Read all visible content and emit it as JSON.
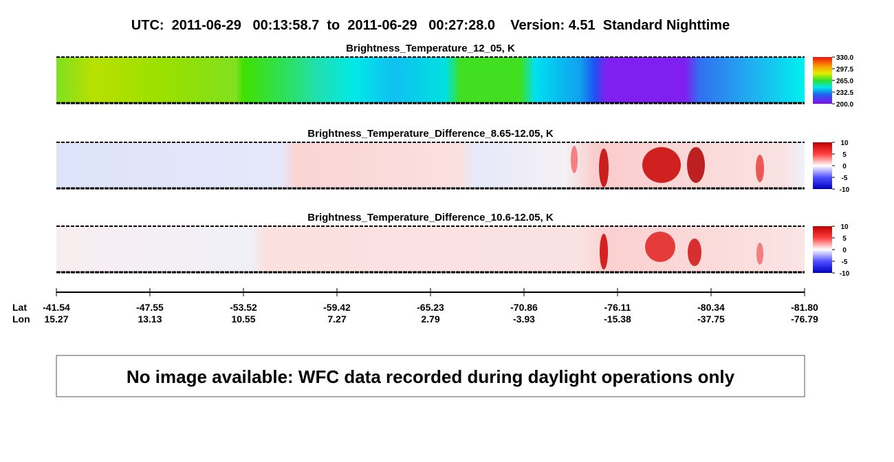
{
  "header": {
    "title": "UTC:  2011-06-29   00:13:58.7  to  2011-06-29   00:27:28.0    Version: 4.51  Standard Nighttime"
  },
  "panels": [
    {
      "title": "Brightness_Temperature_12_05, K",
      "colorbar_ticks": [
        "330.0",
        "297.5",
        "265.0",
        "232.5",
        "200.0"
      ]
    },
    {
      "title": "Brightness_Temperature_Difference_8.65-12.05, K",
      "colorbar_ticks": [
        "10",
        "5",
        "0",
        "-5",
        "-10"
      ]
    },
    {
      "title": "Brightness_Temperature_Difference_10.6-12.05, K",
      "colorbar_ticks": [
        "10",
        "5",
        "0",
        "-5",
        "-10"
      ]
    }
  ],
  "axis": {
    "lat_label": "Lat",
    "lon_label": "Lon",
    "lat": [
      "-41.54",
      "-47.55",
      "-53.52",
      "-59.42",
      "-65.23",
      "-70.86",
      "-76.11",
      "-80.34",
      "-81.80"
    ],
    "lon": [
      "15.27",
      "13.13",
      "10.55",
      "7.27",
      "2.79",
      "-3.93",
      "-15.38",
      "-37.75",
      "-76.79"
    ]
  },
  "notice": "No image available: WFC data recorded during daylight operations only"
}
